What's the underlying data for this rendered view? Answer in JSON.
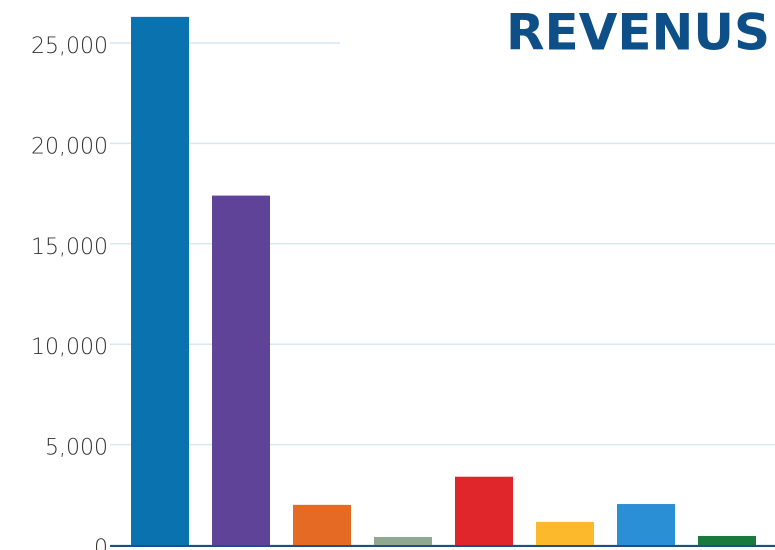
{
  "chart_data": {
    "type": "bar",
    "title": "REVENUS",
    "values": [
      26300,
      17400,
      2000,
      400,
      3400,
      1150,
      2040,
      450
    ],
    "colors": [
      "#0b72b0",
      "#5e4398",
      "#e56b25",
      "#8fa88f",
      "#e1262b",
      "#fbb92b",
      "#2a8fd4",
      "#1a7a3c"
    ],
    "ylim": [
      0,
      27140
    ],
    "yticks": [
      0,
      {
        "value": 5000,
        "label": "5,000"
      },
      {
        "value": 10000,
        "label": "10,000"
      },
      {
        "value": 15000,
        "label": "15,000"
      },
      {
        "value": 20000,
        "label": "20,000"
      },
      {
        "value": 25000,
        "label": "25,000"
      }
    ],
    "grid": true
  }
}
